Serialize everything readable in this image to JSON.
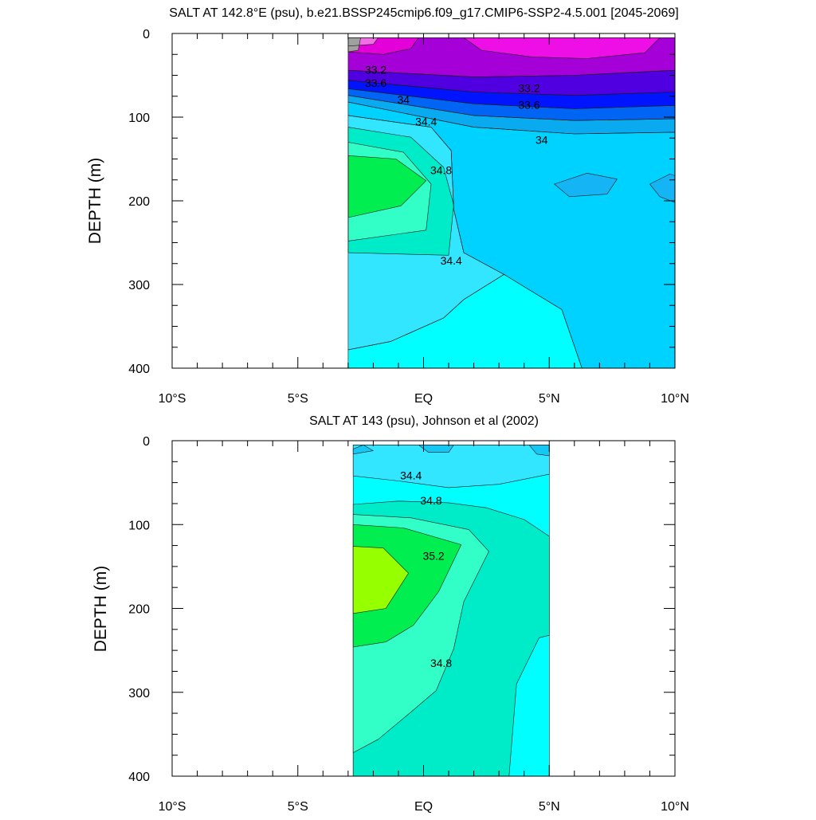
{
  "chart_data": [
    {
      "type": "heatmap",
      "title": "SALT AT 142.8°E (psu), b.e21.BSSP245cmip6.f09_g17.CMIP6-SSP2-4.5.001 [2045-2069]",
      "ylabel": "DEPTH (m)",
      "xlabel": "",
      "xlim": [
        -10,
        10
      ],
      "ylim": [
        0,
        400
      ],
      "y_inverted": true,
      "x_ticks": [
        {
          "value": -10,
          "label": "10°S"
        },
        {
          "value": -5,
          "label": "5°S"
        },
        {
          "value": 0,
          "label": "EQ"
        },
        {
          "value": 5,
          "label": "5°N"
        },
        {
          "value": 10,
          "label": "10°N"
        }
      ],
      "y_ticks": [
        {
          "value": 0,
          "label": "0"
        },
        {
          "value": 100,
          "label": "100"
        },
        {
          "value": 200,
          "label": "200"
        },
        {
          "value": 300,
          "label": "300"
        },
        {
          "value": 400,
          "label": "400"
        }
      ],
      "data_extent": {
        "x": [
          -3,
          10
        ],
        "y": [
          5,
          400
        ]
      },
      "contour_interval": 0.2,
      "contour_labels": [
        {
          "text": "33.2",
          "x": -1.9,
          "y": 48
        },
        {
          "text": "33.6",
          "x": -1.9,
          "y": 64
        },
        {
          "text": "34",
          "x": -0.8,
          "y": 84
        },
        {
          "text": "34.4",
          "x": 0.1,
          "y": 110
        },
        {
          "text": "34.8",
          "x": 0.7,
          "y": 168
        },
        {
          "text": "34.4",
          "x": 1.1,
          "y": 276
        },
        {
          "text": "33.2",
          "x": 4.2,
          "y": 70
        },
        {
          "text": "33.6",
          "x": 4.2,
          "y": 90
        },
        {
          "text": "34",
          "x": 4.7,
          "y": 132
        }
      ],
      "regions": [
        {
          "name": "surface-fresh",
          "color": "#a600d9",
          "points": [
            [
              -3,
              5
            ],
            [
              10,
              5
            ],
            [
              10,
              44
            ],
            [
              6,
              50
            ],
            [
              2,
              52
            ],
            [
              -3,
              44
            ]
          ]
        },
        {
          "name": "surface-magenta-w",
          "color": "#e300d9",
          "points": [
            [
              -3,
              5
            ],
            [
              -0.2,
              5
            ],
            [
              -0.5,
              18
            ],
            [
              -1.6,
              25
            ],
            [
              -3,
              22
            ]
          ]
        },
        {
          "name": "surface-magenta-e",
          "color": "#ee0ee6",
          "points": [
            [
              1.6,
              5
            ],
            [
              9.4,
              5
            ],
            [
              8.8,
              23
            ],
            [
              6.5,
              30
            ],
            [
              4.3,
              28
            ],
            [
              2.3,
              20
            ]
          ]
        },
        {
          "name": "surface-pink",
          "color": "#f06ee6",
          "points": [
            [
              -3,
              5
            ],
            [
              -1.8,
              5
            ],
            [
              -2,
              13
            ],
            [
              -3,
              15
            ]
          ]
        },
        {
          "name": "surface-gray",
          "color": "#a0a0a0",
          "points": [
            [
              -3,
              5
            ],
            [
              -2.5,
              5
            ],
            [
              -2.6,
              20
            ],
            [
              -3,
              22
            ]
          ]
        },
        {
          "name": "halocline-dark",
          "color": "#5000e0",
          "points": [
            [
              -3,
              44
            ],
            [
              2,
              52
            ],
            [
              6,
              50
            ],
            [
              10,
              44
            ],
            [
              10,
              70
            ],
            [
              6,
              74
            ],
            [
              2,
              70
            ],
            [
              -3,
              56
            ]
          ]
        },
        {
          "name": "halocline-blue",
          "color": "#0014ff",
          "points": [
            [
              -3,
              56
            ],
            [
              2,
              70
            ],
            [
              6,
              74
            ],
            [
              10,
              70
            ],
            [
              10,
              86
            ],
            [
              6,
              90
            ],
            [
              2,
              84
            ],
            [
              -3,
              66
            ]
          ]
        },
        {
          "name": "halocline-mid",
          "color": "#0064f5",
          "points": [
            [
              -3,
              66
            ],
            [
              2,
              84
            ],
            [
              6,
              90
            ],
            [
              10,
              86
            ],
            [
              10,
              102
            ],
            [
              6,
              104
            ],
            [
              2,
              98
            ],
            [
              -3,
              74
            ]
          ]
        },
        {
          "name": "halocline-light",
          "color": "#0aaaf0",
          "points": [
            [
              -3,
              74
            ],
            [
              2,
              98
            ],
            [
              6,
              104
            ],
            [
              10,
              102
            ],
            [
              10,
              118
            ],
            [
              6,
              120
            ],
            [
              2,
              112
            ],
            [
              -3,
              82
            ]
          ]
        },
        {
          "name": "upper-cyan",
          "color": "#00d2ff",
          "points": [
            [
              -3,
              82
            ],
            [
              2,
              112
            ],
            [
              6,
              120
            ],
            [
              10,
              118
            ],
            [
              10,
              400
            ],
            [
              6.3,
              400
            ],
            [
              5.5,
              330
            ],
            [
              3.2,
              288
            ],
            [
              1.6,
              262
            ],
            [
              1.2,
              210
            ],
            [
              1.1,
              140
            ],
            [
              0.3,
              112
            ],
            [
              -3,
              98
            ]
          ]
        },
        {
          "name": "eddy-east-1",
          "color": "#14b4f5",
          "points": [
            [
              5.2,
              180
            ],
            [
              6.5,
              167
            ],
            [
              7.7,
              174
            ],
            [
              7.3,
              192
            ],
            [
              5.8,
              195
            ]
          ]
        },
        {
          "name": "eddy-east-2",
          "color": "#14b4f5",
          "points": [
            [
              9.0,
              180
            ],
            [
              9.8,
              168
            ],
            [
              10,
              170
            ],
            [
              10,
              202
            ],
            [
              9.4,
              195
            ]
          ]
        },
        {
          "name": "mid-cyan",
          "color": "#32e6ff",
          "points": [
            [
              -3,
              98
            ],
            [
              0.3,
              112
            ],
            [
              1.1,
              140
            ],
            [
              1.2,
              210
            ],
            [
              1.6,
              262
            ],
            [
              3.2,
              288
            ],
            [
              1.6,
              318
            ],
            [
              0.8,
              340
            ],
            [
              -1.3,
              368
            ],
            [
              -3,
              378
            ]
          ]
        },
        {
          "name": "lower-cyan",
          "color": "#00ffff",
          "points": [
            [
              -3,
              378
            ],
            [
              -1.3,
              368
            ],
            [
              0.8,
              340
            ],
            [
              1.6,
              318
            ],
            [
              3.2,
              288
            ],
            [
              5.5,
              330
            ],
            [
              6.3,
              400
            ],
            [
              -3,
              400
            ]
          ]
        },
        {
          "name": "core-teal",
          "color": "#00ebc8",
          "points": [
            [
              -3,
              112
            ],
            [
              -0.5,
              124
            ],
            [
              0.8,
              160
            ],
            [
              1.2,
              205
            ],
            [
              1.0,
              265
            ],
            [
              -3,
              262
            ]
          ]
        },
        {
          "name": "core-aqua",
          "color": "#32ffc8",
          "points": [
            [
              -3,
              130
            ],
            [
              -0.8,
              142
            ],
            [
              0.3,
              180
            ],
            [
              0.1,
              235
            ],
            [
              -3,
              248
            ]
          ]
        },
        {
          "name": "core-green",
          "color": "#00ee50",
          "points": [
            [
              -3,
              146
            ],
            [
              -1.1,
              150
            ],
            [
              0.1,
              176
            ],
            [
              -0.9,
              206
            ],
            [
              -3,
              220
            ]
          ]
        }
      ]
    },
    {
      "type": "heatmap",
      "title": "SALT AT 143 (psu), Johnson et al (2002)",
      "ylabel": "DEPTH (m)",
      "xlabel": "",
      "xlim": [
        -10,
        10
      ],
      "ylim": [
        0,
        400
      ],
      "y_inverted": true,
      "x_ticks": [
        {
          "value": -10,
          "label": "10°S"
        },
        {
          "value": -5,
          "label": "5°S"
        },
        {
          "value": 0,
          "label": "EQ"
        },
        {
          "value": 5,
          "label": "5°N"
        },
        {
          "value": 10,
          "label": "10°N"
        }
      ],
      "y_ticks": [
        {
          "value": 0,
          "label": "0"
        },
        {
          "value": 100,
          "label": "100"
        },
        {
          "value": 200,
          "label": "200"
        },
        {
          "value": 300,
          "label": "300"
        },
        {
          "value": 400,
          "label": "400"
        }
      ],
      "data_extent": {
        "x": [
          -2.8,
          5
        ],
        "y": [
          5,
          400
        ]
      },
      "contour_interval": 0.2,
      "contour_labels": [
        {
          "text": "34.4",
          "x": -0.5,
          "y": 46
        },
        {
          "text": "34.8",
          "x": 0.3,
          "y": 76
        },
        {
          "text": "35.2",
          "x": 0.4,
          "y": 142
        },
        {
          "text": "34.8",
          "x": 0.7,
          "y": 270
        }
      ],
      "regions": [
        {
          "name": "base-cyan",
          "color": "#00ffff",
          "points": [
            [
              -2.8,
              5
            ],
            [
              5,
              5
            ],
            [
              5,
              400
            ],
            [
              -2.8,
              400
            ]
          ]
        },
        {
          "name": "surface-light",
          "color": "#32e6ff",
          "points": [
            [
              -2.8,
              5
            ],
            [
              5,
              5
            ],
            [
              5,
              40
            ],
            [
              3,
              52
            ],
            [
              1,
              56
            ],
            [
              -1,
              48
            ],
            [
              -2.8,
              42
            ]
          ]
        },
        {
          "name": "surface-blob-1",
          "color": "#14c8f5",
          "points": [
            [
              -0.2,
              5
            ],
            [
              1.2,
              5
            ],
            [
              1.0,
              14
            ],
            [
              0.2,
              14
            ]
          ]
        },
        {
          "name": "surface-blob-2",
          "color": "#14c8f5",
          "points": [
            [
              4.2,
              5
            ],
            [
              5,
              5
            ],
            [
              5,
              18
            ],
            [
              4.5,
              16
            ]
          ]
        },
        {
          "name": "surface-blob-3",
          "color": "#14c8f5",
          "points": [
            [
              -2.8,
              10
            ],
            [
              -2.4,
              5
            ],
            [
              -2,
              12
            ],
            [
              -2.8,
              16
            ]
          ]
        },
        {
          "name": "teal-band",
          "color": "#00ebc8",
          "points": [
            [
              -2.8,
              76
            ],
            [
              -1,
              72
            ],
            [
              1,
              74
            ],
            [
              2.5,
              80
            ],
            [
              4,
              94
            ],
            [
              5,
              114
            ],
            [
              5,
              232
            ],
            [
              4.6,
              235
            ],
            [
              3.7,
              290
            ],
            [
              3.4,
              400
            ],
            [
              -2.8,
              400
            ]
          ]
        },
        {
          "name": "aqua-band",
          "color": "#32ffc8",
          "points": [
            [
              -2.8,
              88
            ],
            [
              -0.5,
              92
            ],
            [
              1.8,
              106
            ],
            [
              2.6,
              132
            ],
            [
              1.6,
              192
            ],
            [
              1.2,
              248
            ],
            [
              0.5,
              298
            ],
            [
              -0.6,
              326
            ],
            [
              -1.8,
              356
            ],
            [
              -2.8,
              372
            ]
          ]
        },
        {
          "name": "green-core",
          "color": "#00ee50",
          "points": [
            [
              -2.8,
              100
            ],
            [
              -0.8,
              104
            ],
            [
              1.5,
              124
            ],
            [
              0.6,
              180
            ],
            [
              -0.4,
              220
            ],
            [
              -1.5,
              240
            ],
            [
              -2.8,
              246
            ]
          ]
        },
        {
          "name": "lime-core",
          "color": "#96ff00",
          "points": [
            [
              -2.8,
              126
            ],
            [
              -1.6,
              128
            ],
            [
              -0.6,
              158
            ],
            [
              -1.5,
              200
            ],
            [
              -2.8,
              206
            ]
          ]
        }
      ]
    }
  ]
}
